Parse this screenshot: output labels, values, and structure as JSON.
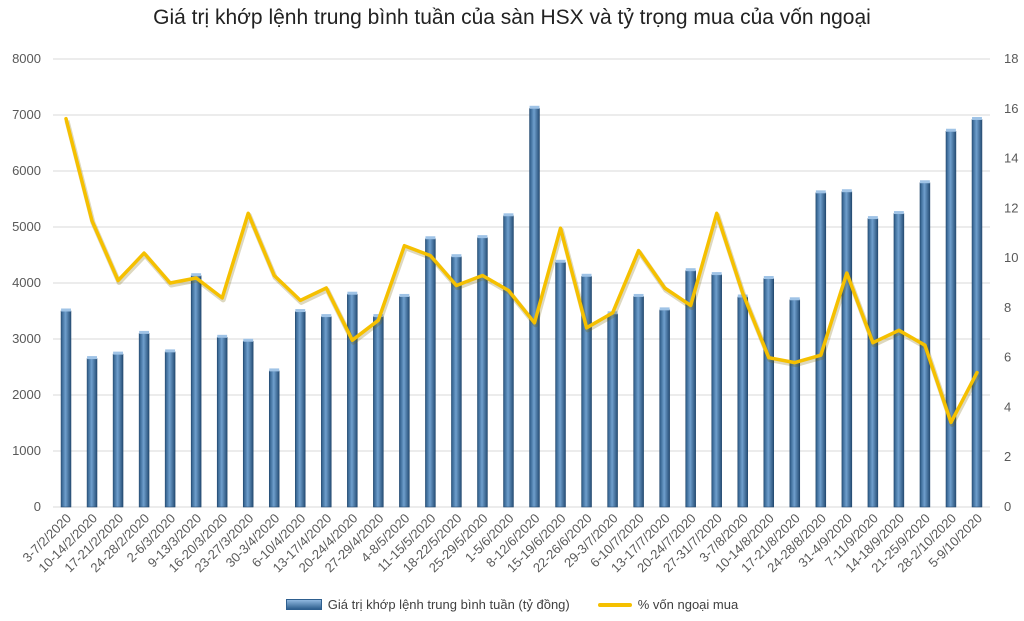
{
  "chart_data": {
    "type": "bar",
    "title": "Giá trị khớp lệnh trung bình tuần của sàn HSX và tỷ trọng mua của vốn ngoại",
    "categories": [
      "3-7/2/2020",
      "10-14/2/2020",
      "17-21/2/2020",
      "24-28/2/2020",
      "2-6/3/2020",
      "9-13/3/2020",
      "16-20/3/2020",
      "23-27/3/2020",
      "30-3/4/2020",
      "6-10/4/2020",
      "13-17/4/2020",
      "20-24/4/2020",
      "27-29/4/2020",
      "4-8/5/2020",
      "11-15/5/2020",
      "18-22/5/2020",
      "25-29/5/2020",
      "1-5/6/2020",
      "8-12/6/2020",
      "15-19/6/2020",
      "22-26/6/2020",
      "29-3/7/2020",
      "6-10/7/2020",
      "13-17/7/2020",
      "20-24/7/2020",
      "27-31/7/2020",
      "3-7/8/2020",
      "10-14/8/2020",
      "17-21/8/2020",
      "24-28/8/2020",
      "31-4/9/2020",
      "7-11/9/2020",
      "14-18/9/2020",
      "21-25/9/2020",
      "28-2/10/2020",
      "5-9/10/2020"
    ],
    "series": [
      {
        "name": "Giá trị khớp lệnh trung bình tuần (tỷ đồng)",
        "type": "bar",
        "axis": "left",
        "color": "#3f6f9c",
        "values": [
          3500,
          2650,
          2730,
          3100,
          2770,
          4130,
          3030,
          2960,
          2430,
          3490,
          3400,
          3800,
          3400,
          3760,
          4790,
          4470,
          4810,
          5200,
          7120,
          4370,
          4120,
          3450,
          3760,
          3520,
          4220,
          4150,
          3750,
          4080,
          3700,
          5610,
          5630,
          5150,
          5240,
          5790,
          6710,
          6920
        ]
      },
      {
        "name": "% vốn ngoại mua",
        "type": "line",
        "axis": "right",
        "color": "#f5c000",
        "values": [
          15.6,
          11.5,
          9.1,
          10.2,
          9.0,
          9.2,
          8.4,
          11.8,
          9.3,
          8.3,
          8.8,
          6.7,
          7.5,
          10.5,
          10.1,
          8.9,
          9.3,
          8.7,
          7.4,
          11.2,
          7.2,
          7.8,
          10.3,
          8.8,
          8.1,
          11.8,
          8.6,
          6.0,
          5.8,
          6.1,
          9.4,
          6.6,
          7.1,
          6.5,
          3.4,
          5.4
        ]
      }
    ],
    "y_left": {
      "min": 0,
      "max": 8000,
      "ticks": [
        0,
        1000,
        2000,
        3000,
        4000,
        5000,
        6000,
        7000,
        8000
      ]
    },
    "y_right": {
      "min": 0,
      "max": 18,
      "ticks": [
        0,
        2,
        4,
        6,
        8,
        10,
        12,
        14,
        16,
        18
      ]
    },
    "grid": true,
    "legend_position": "bottom"
  }
}
